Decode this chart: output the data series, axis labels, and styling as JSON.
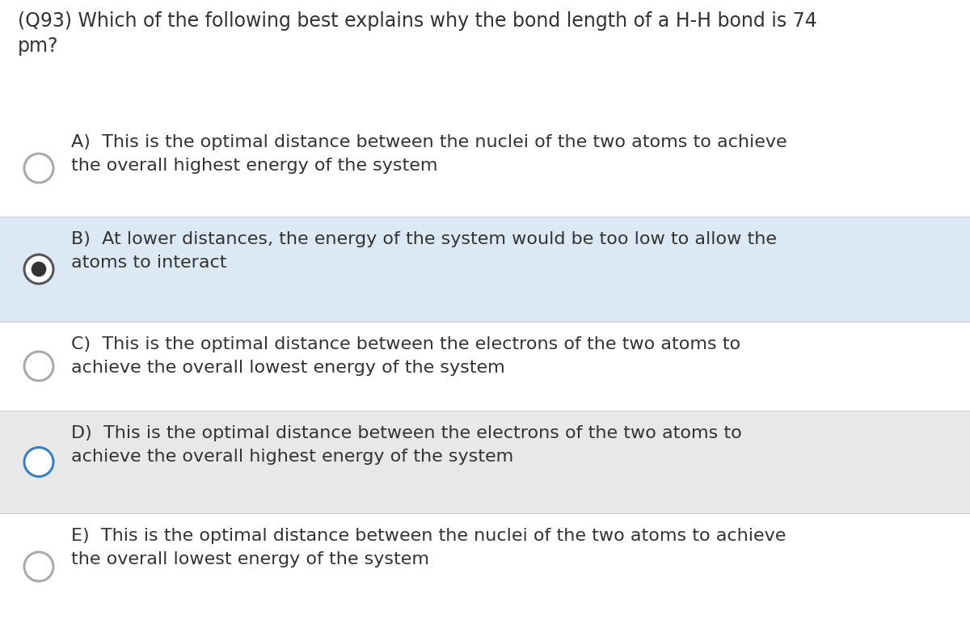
{
  "question": "(Q93) Which of the following best explains why the bond length of a H-H bond is 74\npm?",
  "options": [
    {
      "label": "A)",
      "text": "This is the optimal distance between the nuclei of the two atoms to achieve\nthe overall highest energy of the system",
      "filled": false,
      "bg_color": "#ffffff",
      "circle_edge_color": "#aaaaaa",
      "circle_fill_color": "#ffffff",
      "circle_inner": false,
      "circle_inner_color": "#ffffff"
    },
    {
      "label": "B)",
      "text": "At lower distances, the energy of the system would be too low to allow the\natoms to interact",
      "filled": true,
      "bg_color": "#dce9f5",
      "circle_edge_color": "#555555",
      "circle_fill_color": "#ffffff",
      "circle_inner": true,
      "circle_inner_color": "#333333"
    },
    {
      "label": "C)",
      "text": "This is the optimal distance between the electrons of the two atoms to\nachieve the overall lowest energy of the system",
      "filled": false,
      "bg_color": "#ffffff",
      "circle_edge_color": "#aaaaaa",
      "circle_fill_color": "#ffffff",
      "circle_inner": false,
      "circle_inner_color": "#ffffff"
    },
    {
      "label": "D)",
      "text": "This is the optimal distance between the electrons of the two atoms to\nachieve the overall highest energy of the system",
      "filled": false,
      "bg_color": "#e8e8e8",
      "circle_edge_color": "#3a7fc1",
      "circle_fill_color": "#ffffff",
      "circle_inner": false,
      "circle_inner_color": "#ffffff"
    },
    {
      "label": "E)",
      "text": "This is the optimal distance between the nuclei of the two atoms to achieve\nthe overall lowest energy of the system",
      "filled": false,
      "bg_color": "#ffffff",
      "circle_edge_color": "#aaaaaa",
      "circle_fill_color": "#ffffff",
      "circle_inner": false,
      "circle_inner_color": "#ffffff"
    }
  ],
  "bg_color": "#ffffff",
  "text_color": "#333333",
  "question_fontsize": 17,
  "option_fontsize": 16,
  "fig_width": 12.0,
  "fig_height": 7.67,
  "dpi": 100
}
